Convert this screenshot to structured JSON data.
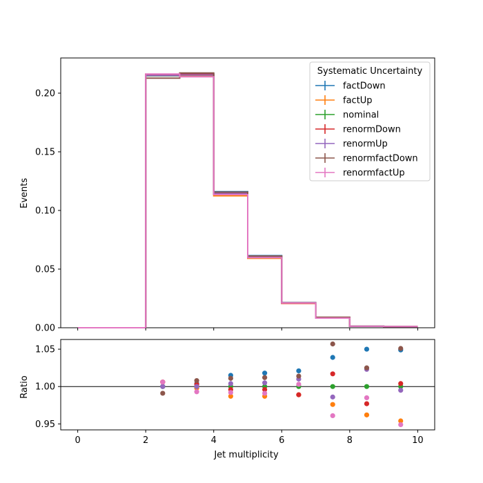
{
  "chart_data": [
    {
      "type": "line",
      "subtype": "step-histogram",
      "title": "",
      "xlabel": "",
      "ylabel": "Events",
      "xlim": [
        -0.5,
        10.5
      ],
      "ylim": [
        0,
        0.23
      ],
      "x_ticks": [
        0,
        2,
        4,
        6,
        8,
        10
      ],
      "y_ticks": [
        0.0,
        0.05,
        0.1,
        0.15,
        0.2
      ],
      "y_tick_labels": [
        "0.00",
        "0.05",
        "0.10",
        "0.15",
        "0.20"
      ],
      "bin_edges": [
        0,
        1,
        2,
        3,
        4,
        5,
        6,
        7,
        8,
        9,
        10
      ],
      "legend": {
        "title": "Systematic Uncertainty",
        "position": "top-right"
      },
      "grid": false,
      "series": [
        {
          "name": "factDown",
          "color": "#1f77b4",
          "values": [
            0,
            0,
            0.215,
            0.2165,
            0.116,
            0.0615,
            0.0215,
            0.0088,
            0.0013,
            0.0011
          ]
        },
        {
          "name": "factUp",
          "color": "#ff7f0e",
          "values": [
            0,
            0,
            0.216,
            0.215,
            0.1125,
            0.0592,
            0.0207,
            0.0083,
            0.0012,
            0.001
          ]
        },
        {
          "name": "nominal",
          "color": "#2ca02c",
          "values": [
            0,
            0,
            0.2148,
            0.2155,
            0.1143,
            0.0604,
            0.0211,
            0.0085,
            0.0013,
            0.001
          ]
        },
        {
          "name": "renormDown",
          "color": "#d62728",
          "values": [
            0,
            0,
            0.216,
            0.216,
            0.1138,
            0.0602,
            0.0209,
            0.0087,
            0.0012,
            0.001
          ]
        },
        {
          "name": "renormUp",
          "color": "#9467bd",
          "values": [
            0,
            0,
            0.215,
            0.2155,
            0.1148,
            0.0607,
            0.0213,
            0.0084,
            0.0012,
            0.001
          ]
        },
        {
          "name": "renormfactDown",
          "color": "#8c564b",
          "values": [
            0,
            0,
            0.2128,
            0.2172,
            0.1156,
            0.0611,
            0.0213,
            0.009,
            0.0013,
            0.0011
          ]
        },
        {
          "name": "renormfactUp",
          "color": "#e377c2",
          "values": [
            0,
            0,
            0.2163,
            0.214,
            0.1135,
            0.0598,
            0.0211,
            0.0082,
            0.0013,
            0.001
          ]
        }
      ]
    },
    {
      "type": "scatter",
      "title": "",
      "xlabel": "Jet multiplicity",
      "ylabel": "Ratio",
      "xlim": [
        -0.5,
        10.5
      ],
      "ylim": [
        0.942,
        1.063
      ],
      "x_ticks": [
        0,
        2,
        4,
        6,
        8,
        10
      ],
      "y_ticks": [
        0.95,
        1.0,
        1.05
      ],
      "y_tick_labels": [
        "0.95",
        "1.00",
        "1.05"
      ],
      "reference_line": 1.0,
      "grid": false,
      "x": [
        2.5,
        3.5,
        4.5,
        5.5,
        6.5,
        7.5,
        8.5,
        9.5
      ],
      "series": [
        {
          "name": "factDown",
          "color": "#1f77b4",
          "values": [
            1.0,
            1.004,
            1.015,
            1.018,
            1.021,
            1.039,
            1.05,
            1.049
          ]
        },
        {
          "name": "factUp",
          "color": "#ff7f0e",
          "values": [
            1.006,
            0.998,
            0.987,
            0.987,
            0.989,
            0.976,
            0.962,
            0.954
          ]
        },
        {
          "name": "nominal",
          "color": "#2ca02c",
          "values": [
            1.0,
            1.0,
            1.0,
            1.0,
            1.0,
            1.0,
            1.0,
            1.0
          ]
        },
        {
          "name": "renormDown",
          "color": "#d62728",
          "values": [
            1.006,
            1.003,
            0.996,
            0.996,
            0.989,
            1.017,
            0.977,
            1.004
          ]
        },
        {
          "name": "renormUp",
          "color": "#9467bd",
          "values": [
            1.0,
            1.0,
            1.004,
            1.005,
            1.01,
            0.986,
            1.023,
            0.995
          ]
        },
        {
          "name": "renormfactDown",
          "color": "#8c564b",
          "values": [
            0.991,
            1.008,
            1.011,
            1.012,
            1.014,
            1.057,
            1.025,
            1.051
          ]
        },
        {
          "name": "renormfactUp",
          "color": "#e377c2",
          "values": [
            1.006,
            0.993,
            0.992,
            0.991,
            1.003,
            0.961,
            0.985,
            0.949
          ]
        }
      ]
    }
  ]
}
